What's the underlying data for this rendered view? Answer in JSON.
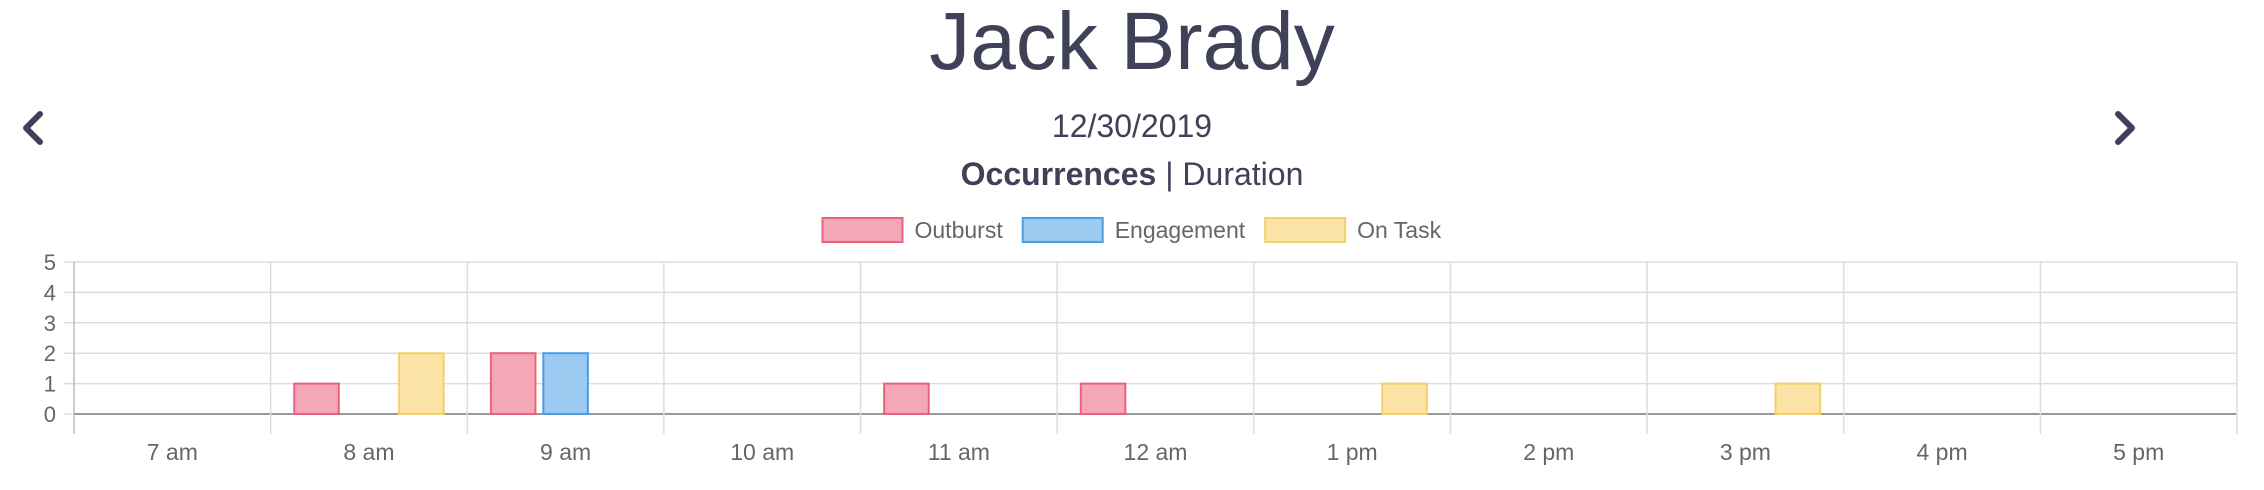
{
  "header": {
    "student_name": "Jack Brady",
    "date": "12/30/2019",
    "prev_icon": "chevron-left-icon",
    "next_icon": "chevron-right-icon"
  },
  "mode_toggle": {
    "active": "Occurrences",
    "separator": " | ",
    "inactive": "Duration"
  },
  "chart_data": {
    "type": "bar",
    "categories": [
      "7 am",
      "8 am",
      "9 am",
      "10 am",
      "11 am",
      "12 am",
      "1 pm",
      "2 pm",
      "3 pm",
      "4 pm",
      "5 pm"
    ],
    "series": [
      {
        "name": "Outburst",
        "values": [
          0,
          1,
          2,
          0,
          1,
          1,
          0,
          0,
          0,
          0,
          0
        ],
        "fill": "#f4a8b7",
        "stroke": "#e8637e"
      },
      {
        "name": "Engagement",
        "values": [
          0,
          0,
          2,
          0,
          0,
          0,
          0,
          0,
          0,
          0,
          0
        ],
        "fill": "#9ccaf0",
        "stroke": "#4a9ee8"
      },
      {
        "name": "On Task",
        "values": [
          0,
          2,
          0,
          0,
          0,
          0,
          1,
          0,
          1,
          0,
          0
        ],
        "fill": "#fbe3a6",
        "stroke": "#f6cf6a"
      }
    ],
    "ylim": [
      0,
      5
    ],
    "yticks": [
      0,
      1,
      2,
      3,
      4,
      5
    ],
    "grid": true,
    "legend_position": "top-center"
  }
}
